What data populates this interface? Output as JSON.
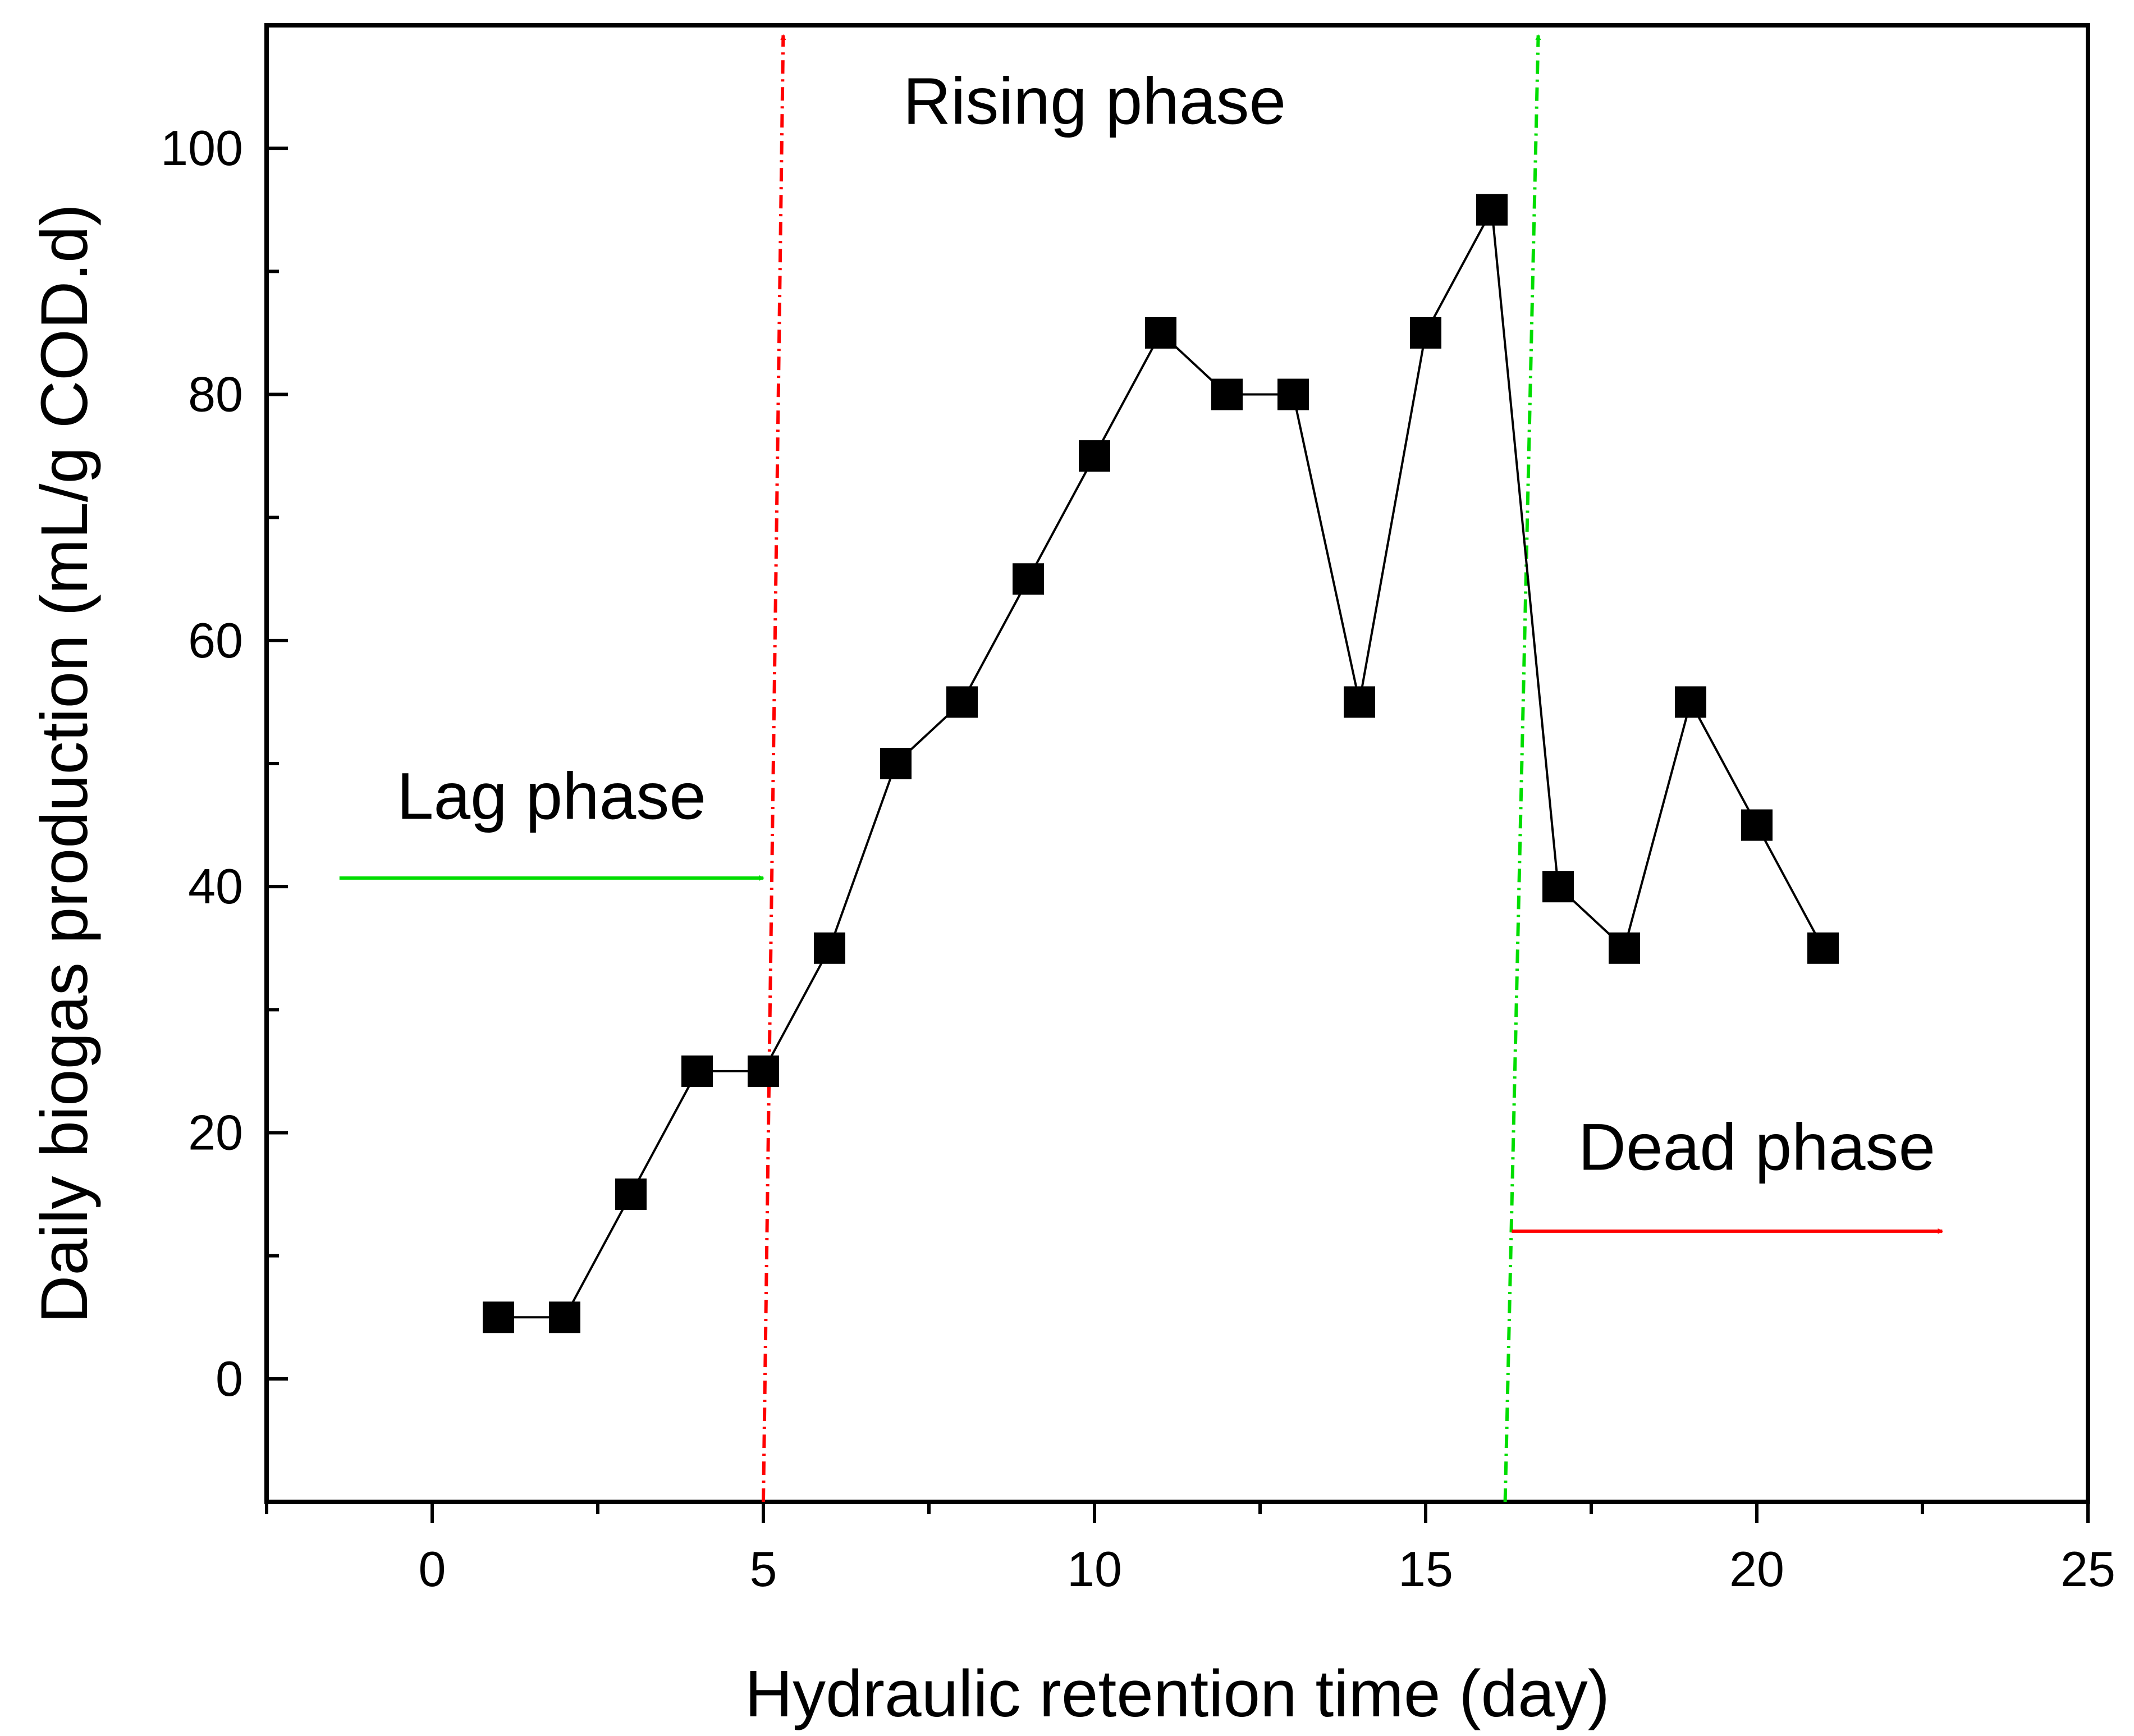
{
  "chart_data": {
    "type": "line",
    "title": "",
    "xlabel": "Hydraulic retention time (day)",
    "ylabel": "Daily biogas production (mL/g COD.d)",
    "xlim": [
      -2.5,
      25
    ],
    "ylim": [
      -10,
      110
    ],
    "x_ticks": [
      0,
      5,
      10,
      15,
      20,
      25
    ],
    "x_tick_labels": [
      "0",
      "5",
      "10",
      "15",
      "20",
      "25"
    ],
    "x_minor_ticks": [
      -2.5,
      2.5,
      7.5,
      12.5,
      17.5,
      22.5
    ],
    "y_ticks": [
      0,
      20,
      40,
      60,
      80,
      100
    ],
    "y_tick_labels": [
      "0",
      "20",
      "40",
      "60",
      "80",
      "100"
    ],
    "y_minor_ticks": [
      -10,
      10,
      30,
      50,
      70,
      90,
      110
    ],
    "grid": false,
    "legend": null,
    "series": [
      {
        "name": "Daily biogas production",
        "color": "#000000",
        "marker": "square",
        "x": [
          1,
          2,
          3,
          4,
          5,
          6,
          7,
          8,
          9,
          10,
          11,
          12,
          13,
          14,
          15,
          16,
          17,
          18,
          19,
          20,
          21
        ],
        "y": [
          5,
          5,
          15,
          25,
          25,
          35,
          50,
          55,
          65,
          75,
          85,
          80,
          80,
          55,
          85,
          95,
          40,
          35,
          55,
          45,
          35
        ]
      }
    ],
    "annotations": [
      {
        "text": "Rising phase",
        "x": 10,
        "y": 102
      },
      {
        "text": "Lag phase",
        "x": 1.8,
        "y": 45.5
      },
      {
        "text": "Dead phase",
        "x": 20,
        "y": 17
      }
    ],
    "phase_lines": [
      {
        "name": "lag-rising-boundary",
        "color": "#ff0000",
        "style": "dash-dot",
        "x_bottom": 5,
        "x_top": 5.3,
        "arrow": "up"
      },
      {
        "name": "rising-dead-boundary",
        "color": "#00dd00",
        "style": "dash-dot",
        "x_bottom": 16.2,
        "x_top": 16.7,
        "arrow": "up"
      }
    ],
    "phase_arrows": [
      {
        "name": "lag-phase-arrow",
        "color": "#00dd00",
        "x_start": -1.4,
        "x_end": 5,
        "y": 40.7
      },
      {
        "name": "dead-phase-arrow",
        "color": "#ff0000",
        "x_start": 16.3,
        "x_end": 22.8,
        "y": 12
      }
    ]
  }
}
